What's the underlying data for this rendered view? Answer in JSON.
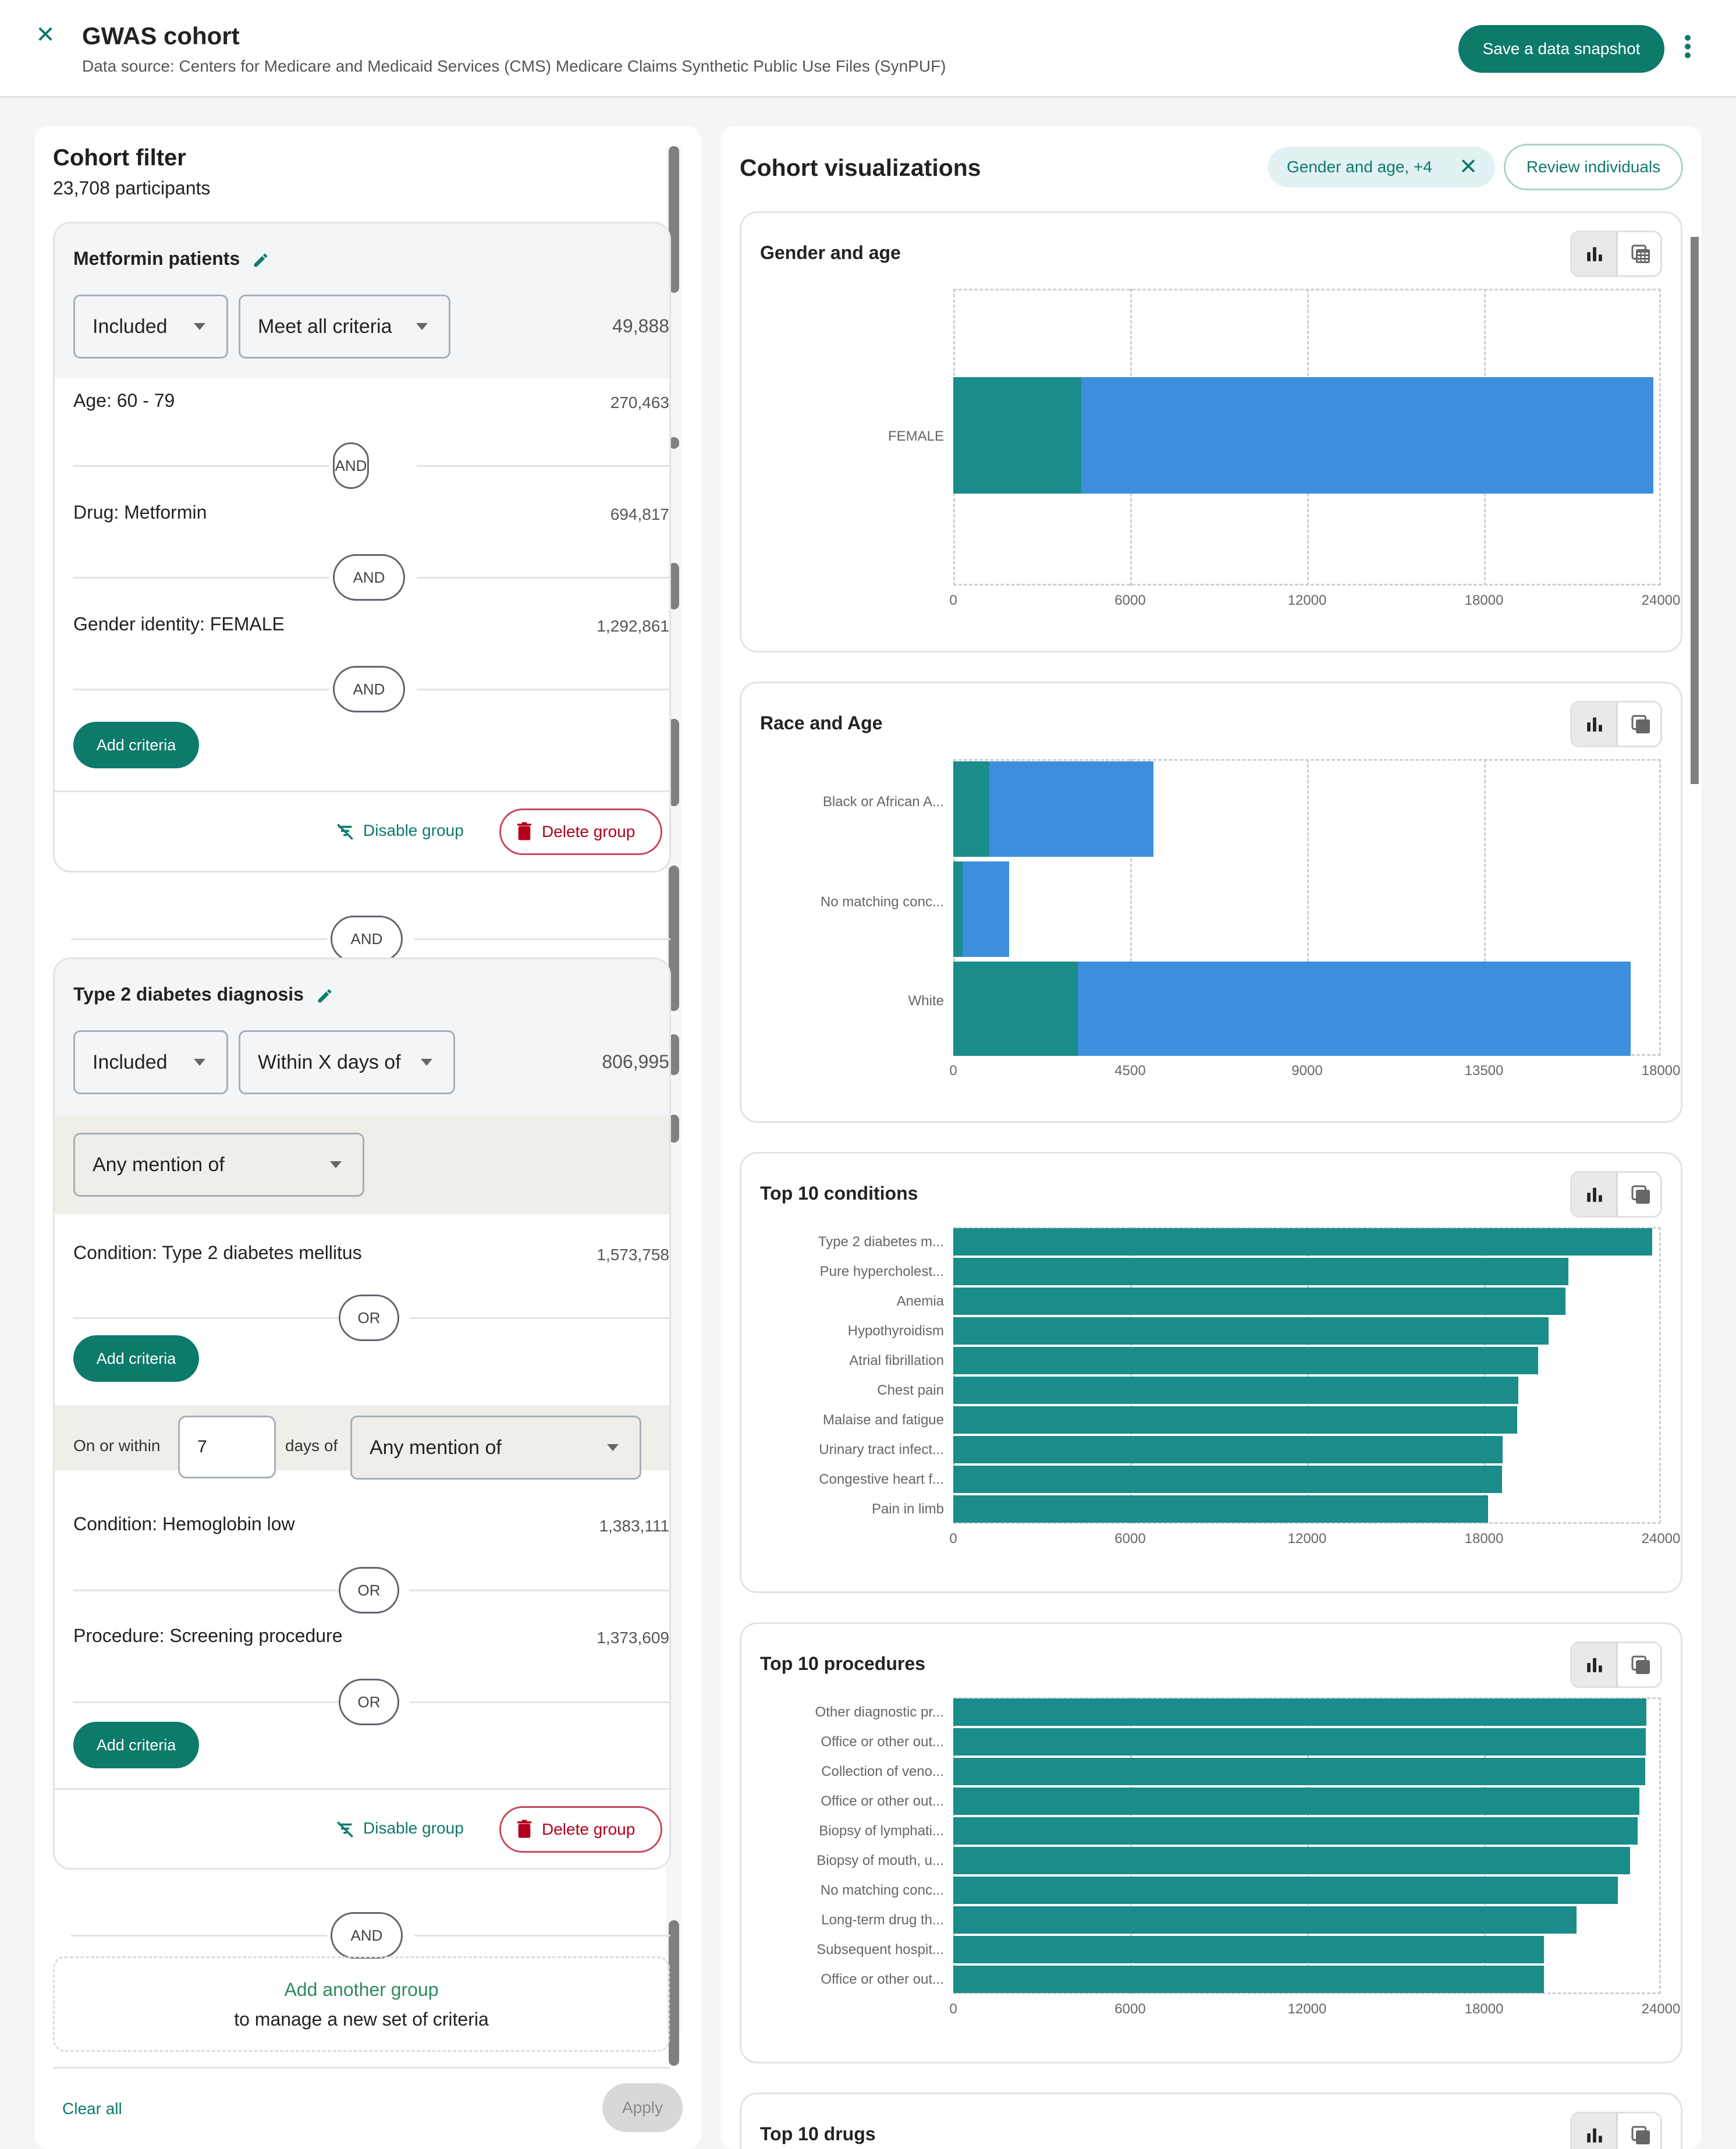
{
  "header": {
    "title": "GWAS cohort",
    "subtitle": "Data source: Centers for Medicare and Medicaid Services (CMS) Medicare Claims Synthetic Public Use Files (SynPUF)",
    "save_label": "Save a data snapshot",
    "close_icon": "close-icon",
    "more_icon": "more-vertical-icon"
  },
  "filter": {
    "title": "Cohort filter",
    "participants": "23,708 participants",
    "groups": [
      {
        "name": "Metformin patients",
        "inclusion": "Included",
        "match": "Meet all criteria",
        "count": "49,888",
        "criteria": [
          {
            "label": "Age: 60 - 79",
            "count": "270,463",
            "op": "AND"
          },
          {
            "label": "Drug: Metformin",
            "count": "694,817",
            "op": "AND"
          },
          {
            "label": "Gender identity: FEMALE",
            "count": "1,292,861",
            "op": "AND"
          }
        ],
        "add_criteria": "Add criteria",
        "disable": "Disable group",
        "delete": "Delete group"
      },
      {
        "name": "Type 2 diabetes diagnosis",
        "inclusion": "Included",
        "match": "Within X days of",
        "count": "806,995",
        "first_select": "Any mention of",
        "criteria_a": [
          {
            "label": "Condition: Type 2 diabetes mellitus",
            "count": "1,573,758",
            "op": "OR"
          }
        ],
        "add_criteria_a": "Add criteria",
        "within": {
          "prefix": "On or within",
          "days": "7",
          "suffix": "days of",
          "select": "Any mention of"
        },
        "criteria_b": [
          {
            "label": "Condition: Hemoglobin low",
            "count": "1,383,111",
            "op": "OR"
          },
          {
            "label": "Procedure: Screening procedure",
            "count": "1,373,609",
            "op": "OR"
          }
        ],
        "add_criteria_b": "Add criteria",
        "disable": "Disable group",
        "delete": "Delete group"
      }
    ],
    "group_op": "AND",
    "group_op_2": "AND",
    "add_group": "Add another group",
    "add_group_sub": "to manage a new set of criteria",
    "clear_all": "Clear all",
    "apply": "Apply"
  },
  "viz": {
    "title": "Cohort visualizations",
    "chip": "Gender and age, +4",
    "review": "Review individuals",
    "cards": [
      {
        "title": "Gender and age"
      },
      {
        "title": "Race and Age"
      },
      {
        "title": "Top 10 conditions"
      },
      {
        "title": "Top 10 procedures"
      },
      {
        "title": "Top 10 drugs"
      }
    ]
  },
  "colors": {
    "primary": "#0d7a6a",
    "danger": "#b0001e",
    "series_teal": "#1a8c8a",
    "series_blue": "#3e8ede"
  },
  "chart_data": [
    {
      "type": "bar",
      "orientation": "horizontal",
      "stacked": true,
      "title": "Gender and age",
      "categories": [
        "FEMALE"
      ],
      "series": [
        {
          "name": "segment-1",
          "color": "#1a8c8a",
          "values": [
            4350
          ]
        },
        {
          "name": "segment-2",
          "color": "#3e8ede",
          "values": [
            19358
          ]
        }
      ],
      "xticks": [
        "0",
        "6000",
        "12000",
        "18000",
        "24000"
      ],
      "xlim": [
        0,
        24000
      ],
      "grid": true
    },
    {
      "type": "bar",
      "orientation": "horizontal",
      "stacked": true,
      "title": "Race and Age",
      "categories": [
        "Black or African A...",
        "No matching conc...",
        "White"
      ],
      "series": [
        {
          "name": "segment-1",
          "color": "#1a8c8a",
          "values": [
            920,
            240,
            3160
          ]
        },
        {
          "name": "segment-2",
          "color": "#3e8ede",
          "values": [
            4150,
            1180,
            14050
          ]
        }
      ],
      "xticks": [
        "0",
        "4500",
        "9000",
        "13500",
        "18000"
      ],
      "xlim": [
        0,
        18000
      ],
      "grid": true
    },
    {
      "type": "bar",
      "orientation": "horizontal",
      "title": "Top 10 conditions",
      "categories": [
        "Type 2 diabetes m...",
        "Pure hypercholest...",
        "Anemia",
        "Hypothyroidism",
        "Atrial fibrillation",
        "Chest pain",
        "Malaise and fatigue",
        "Urinary tract infect...",
        "Congestive heart f...",
        "Pain in limb"
      ],
      "values": [
        23700,
        20870,
        20770,
        20190,
        19840,
        19160,
        19120,
        18630,
        18610,
        18130
      ],
      "xticks": [
        "0",
        "6000",
        "12000",
        "18000",
        "24000"
      ],
      "xlim": [
        0,
        24000
      ],
      "grid": true
    },
    {
      "type": "bar",
      "orientation": "horizontal",
      "title": "Top 10 procedures",
      "categories": [
        "Other diagnostic pr...",
        "Office or other out...",
        "Collection of veno...",
        "Office or other out...",
        "Biopsy of lymphati...",
        "Biopsy of mouth, u...",
        "No matching conc...",
        "Long-term drug th...",
        "Subsequent hospit...",
        "Office or other out..."
      ],
      "values": [
        23500,
        23480,
        23460,
        23270,
        23210,
        22950,
        22530,
        21130,
        20040,
        20040
      ],
      "xticks": [
        "0",
        "6000",
        "12000",
        "18000",
        "24000"
      ],
      "xlim": [
        0,
        24000
      ],
      "grid": true
    }
  ]
}
